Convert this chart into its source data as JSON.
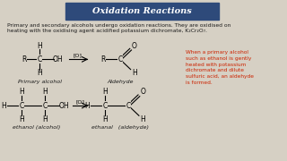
{
  "title": "Oxidation Reactions",
  "title_bg": "#2e4a7a",
  "title_color": "white",
  "body_text": "Primary and secondary alcohols undergo oxidation reactions. They are oxidised on\nheating with the oxidising agent acidified potassium dichromate, K₂Cr₂O₇.",
  "red_text": "When a primary alcohol\nsuch as ethanol is gently\nheated with potassium\ndichromate and dilute\nsulfuric acid, an aldehyde\nis formed.",
  "label_primary": "Primary alcohol",
  "label_aldehyde": "Aldehyde",
  "label_ethanol": "ethanol (alcohol)",
  "label_ethanal": "ethanal   (aldehyde)",
  "bg_color": "#d6d0c4",
  "text_color": "#1a1a1a",
  "red_color": "#cc2200"
}
